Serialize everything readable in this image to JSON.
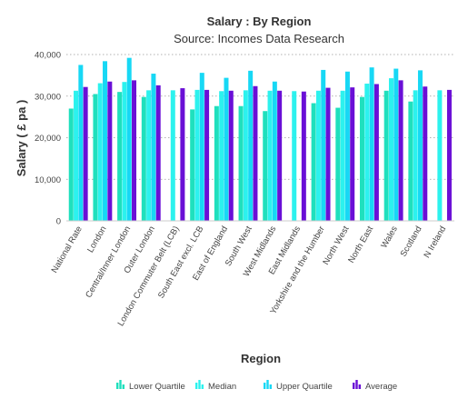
{
  "chart_data": {
    "type": "bar",
    "title": "Salary : By Region",
    "subtitle": "Source: Incomes Data Research",
    "xlabel": "Region",
    "ylabel": "Salary ( £ pa )",
    "ylim": [
      0,
      40000
    ],
    "yticks": [
      0,
      10000,
      20000,
      30000,
      40000
    ],
    "ytick_labels": [
      "0",
      "10,000",
      "20,000",
      "30,000",
      "40,000"
    ],
    "grid": true,
    "legend_position": "bottom",
    "categories": [
      "National Rate",
      "London",
      "Central/Inner London",
      "Outer London",
      "London Commuter Belt (LCB)",
      "South East excl. LCB",
      "East of England",
      "South West",
      "West Midlands",
      "East Midlands",
      "Yorkshire and the Humber",
      "North West",
      "North East",
      "Wales",
      "Scotland",
      "N Ireland"
    ],
    "series": [
      {
        "name": "Lower Quartile",
        "color": "#1fe0bd",
        "values": [
          27000,
          30500,
          31000,
          29800,
          null,
          26800,
          27600,
          27600,
          26400,
          null,
          28300,
          27200,
          29800,
          31300,
          28700,
          null
        ]
      },
      {
        "name": "Median",
        "color": "#2cf2ee",
        "values": [
          31300,
          33100,
          33400,
          31400,
          31400,
          31500,
          31200,
          31400,
          31300,
          31200,
          31300,
          31300,
          33000,
          34300,
          31400,
          31400
        ]
      },
      {
        "name": "Upper Quartile",
        "color": "#17d8f5",
        "values": [
          37500,
          38400,
          39200,
          35400,
          null,
          35600,
          34400,
          36100,
          33500,
          null,
          36300,
          35900,
          36900,
          36600,
          36200,
          null
        ]
      },
      {
        "name": "Average",
        "color": "#6a0fd6",
        "values": [
          32200,
          33500,
          33800,
          32600,
          31900,
          31500,
          31300,
          32400,
          31300,
          31100,
          32000,
          32100,
          32900,
          33800,
          32300,
          31500
        ]
      }
    ]
  }
}
